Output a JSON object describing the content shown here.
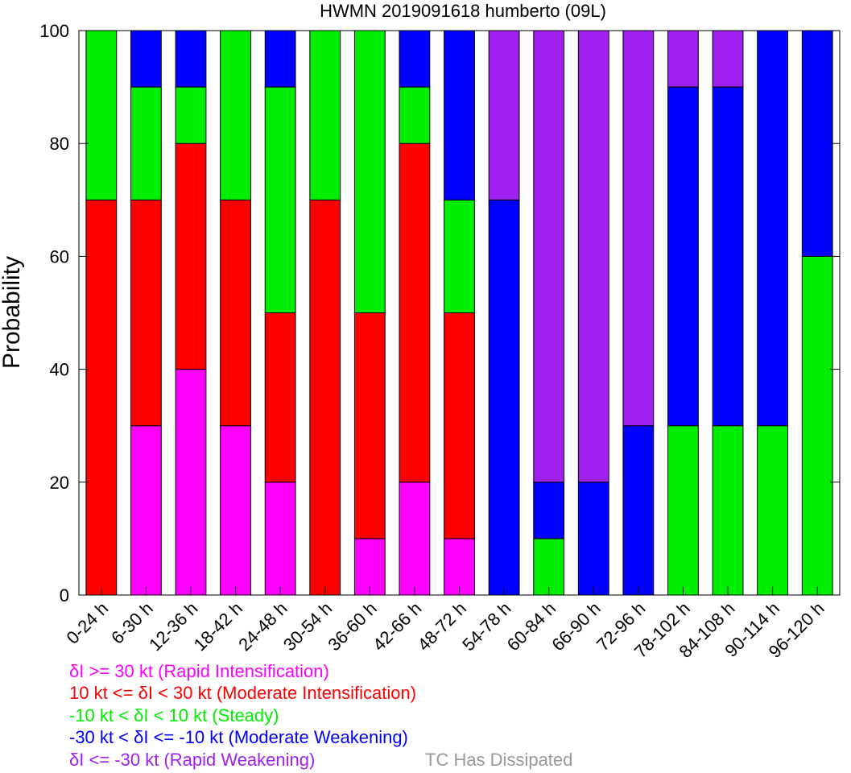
{
  "chart_data": {
    "type": "bar",
    "stacked": true,
    "title": "HWMN 2019091618 humberto (09L)",
    "ylabel": "Probability",
    "xlabel": "",
    "ylim": [
      0,
      100
    ],
    "yticks": [
      0,
      20,
      40,
      60,
      80,
      100
    ],
    "categories": [
      "0-24 h",
      "6-30 h",
      "12-36 h",
      "18-42 h",
      "24-48 h",
      "30-54 h",
      "36-60 h",
      "42-66 h",
      "48-72 h",
      "54-78 h",
      "60-84 h",
      "66-90 h",
      "72-96 h",
      "78-102 h",
      "84-108 h",
      "90-114 h",
      "96-120 h"
    ],
    "series": [
      {
        "name": "δI >= 30 kt (Rapid Intensification)",
        "color": "#ff00ff",
        "values": [
          0,
          30,
          40,
          30,
          20,
          0,
          10,
          20,
          10,
          0,
          0,
          0,
          0,
          0,
          0,
          0,
          0
        ]
      },
      {
        "name": "10 kt <= δI < 30 kt (Moderate Intensification)",
        "color": "#ff0000",
        "values": [
          70,
          40,
          40,
          40,
          30,
          70,
          40,
          60,
          40,
          0,
          0,
          0,
          0,
          0,
          0,
          0,
          0
        ]
      },
      {
        "name": "-10 kt < δI < 10 kt (Steady)",
        "color": "#00ee00",
        "values": [
          30,
          20,
          10,
          30,
          40,
          30,
          50,
          10,
          20,
          0,
          10,
          0,
          0,
          30,
          30,
          30,
          60
        ]
      },
      {
        "name": "-30 kt < δI <= -10 kt (Moderate Weakening)",
        "color": "#0000ff",
        "values": [
          0,
          10,
          10,
          0,
          10,
          0,
          0,
          10,
          30,
          70,
          10,
          20,
          30,
          60,
          60,
          70,
          40
        ]
      },
      {
        "name": "δI <= -30 kt (Rapid Weakening)",
        "color": "#a020f0",
        "values": [
          0,
          0,
          0,
          0,
          0,
          0,
          0,
          0,
          0,
          30,
          80,
          80,
          70,
          10,
          10,
          0,
          0
        ]
      }
    ],
    "dissipated_label": "TC Has Dissipated",
    "dissipated_color": "#999999",
    "legend_placement": "bottom-left"
  }
}
